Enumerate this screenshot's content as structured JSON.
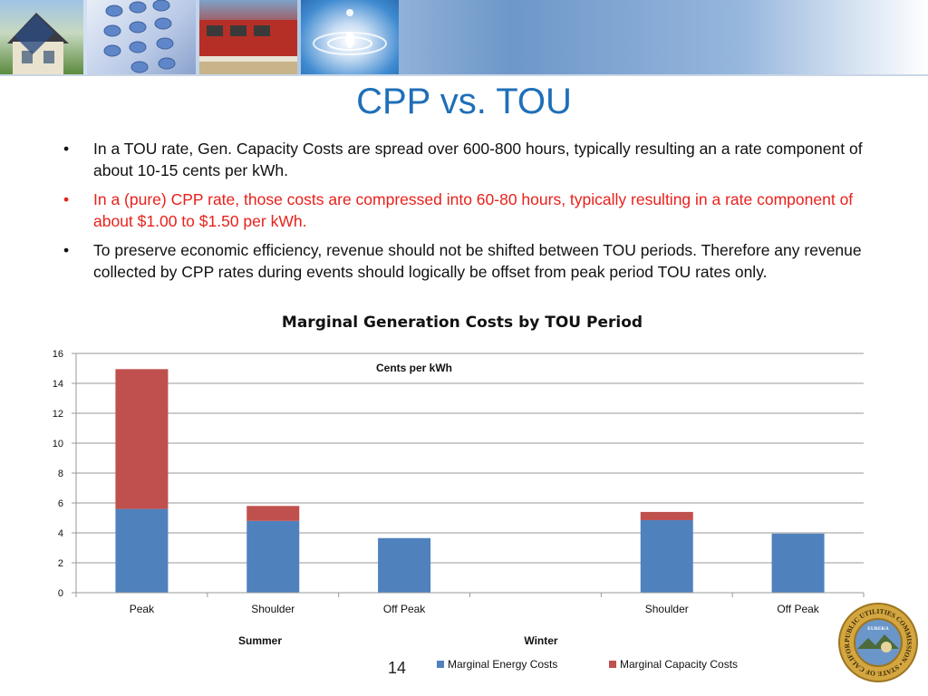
{
  "header": {
    "photos": [
      "house-solar-photo",
      "phone-keypad-photo",
      "train-photo",
      "water-drop-photo"
    ]
  },
  "slide": {
    "title": "CPP vs. TOU",
    "bullets": [
      {
        "marker": "•",
        "text": "In a TOU rate, Gen. Capacity Costs are spread over 600-800 hours, typically resulting an a rate component of about 10-15 cents per kWh.",
        "color": "#111111"
      },
      {
        "marker": "•",
        "text": "In a (pure) CPP rate, those costs are compressed into 60-80 hours, typically resulting in a rate component of about $1.00 to $1.50 per kWh.",
        "color": "#e8211b"
      },
      {
        "marker": "•",
        "text": "To preserve economic efficiency, revenue should not be shifted between TOU periods.   Therefore any revenue collected by CPP rates during events should logically be offset from peak period TOU rates only.",
        "color": "#111111"
      }
    ],
    "page_number": "14"
  },
  "chart_data": {
    "type": "bar",
    "stacked": true,
    "title": "Marginal Generation Costs by TOU Period",
    "annotation": "Cents per kWh",
    "categories": [
      "Peak",
      "Shoulder",
      "Off Peak",
      "",
      "Shoulder",
      "Off Peak"
    ],
    "groups": [
      {
        "label": "Summer"
      },
      {
        "label": "Winter"
      }
    ],
    "series": [
      {
        "name": "Marginal Energy Costs",
        "color": "#4f81bd",
        "values": [
          5.6,
          4.8,
          3.65,
          null,
          4.85,
          3.95
        ]
      },
      {
        "name": "Marginal Capacity Costs",
        "color": "#c0504d",
        "values": [
          9.35,
          1.0,
          0,
          null,
          0.55,
          0
        ]
      }
    ],
    "ylim": [
      0,
      16
    ],
    "yticks": [
      0,
      2,
      4,
      6,
      8,
      10,
      12,
      14,
      16
    ],
    "grid": true,
    "legend": "bottom"
  },
  "seal": {
    "text": "PUBLIC UTILITIES COMMISSION • STATE OF CALIFORNIA •",
    "motto": "EUREKA"
  }
}
